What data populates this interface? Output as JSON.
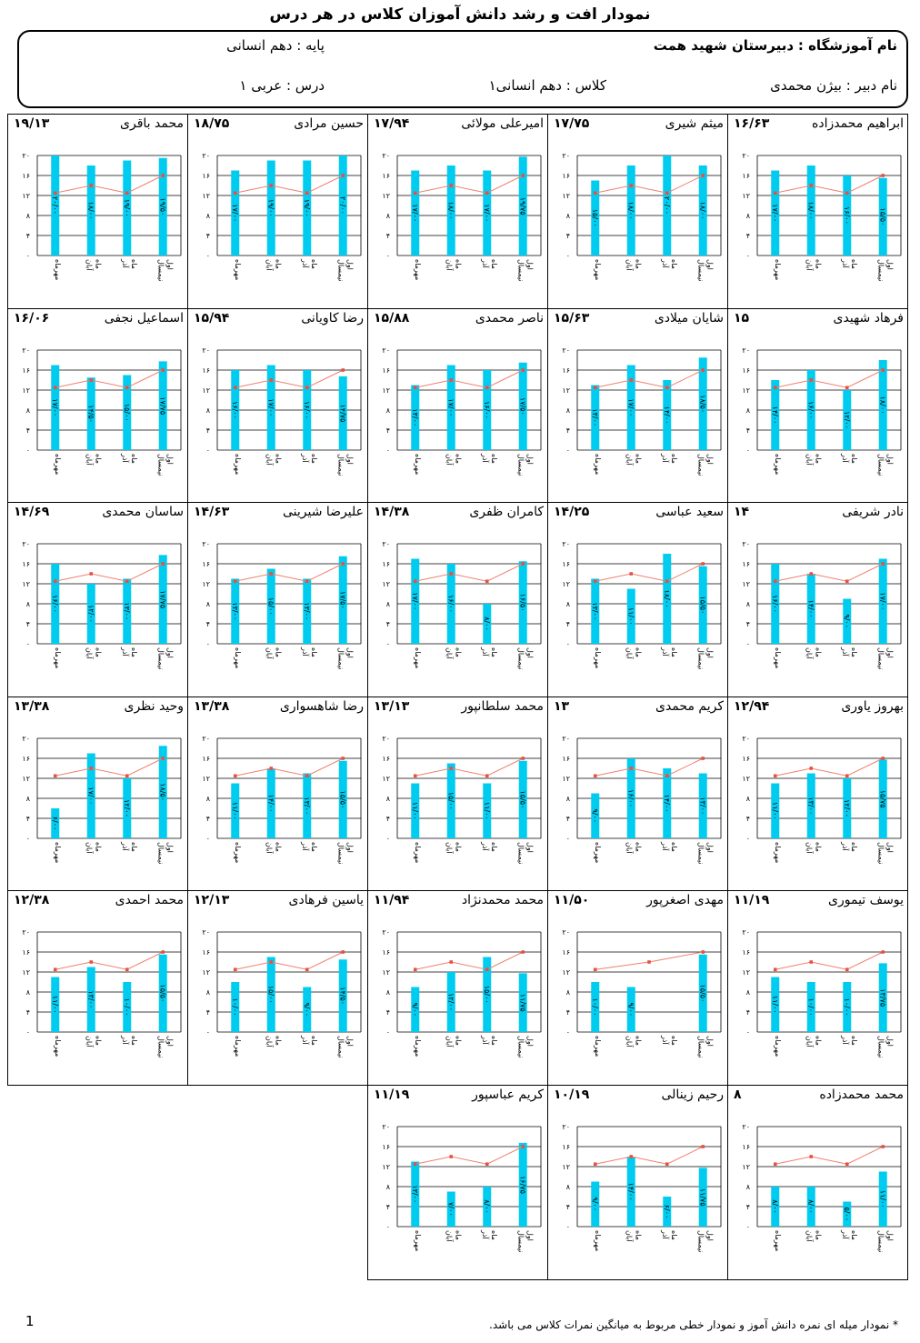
{
  "header": {
    "title": "نمودار افت و رشد دانش آموزان کلاس در هر درس",
    "school_label": "نام آموزشگاه :",
    "school_value": "دبیرستان شهید همت",
    "grade_label": "پایه :",
    "grade_value": "دهم انسانی",
    "teacher_label": "نام دبیر :",
    "teacher_value": "بیژن محمدی",
    "class_label": "کلاس :",
    "class_value": "دهم انسانی۱",
    "lesson_label": "درس :",
    "lesson_value": "عربی ۱"
  },
  "colors": {
    "bar": "#00ccf0",
    "line": "#f08070",
    "marker": "#e85040",
    "grid": "#000000"
  },
  "chart_data": {
    "type": "bar",
    "categories": [
      "مهرماه",
      "آبان ماه",
      "آذر ماه",
      "نیمسال اول"
    ],
    "y_ticks": [
      "۰",
      "۴",
      "۸",
      "۱۲",
      "۱۶",
      "۲۰"
    ],
    "ylim": [
      0,
      20
    ],
    "class_average_line": [
      12.5,
      14,
      12.5,
      16
    ],
    "students": [
      {
        "name": "ابراهیم محمدزاده",
        "avg": "۱۶/۶۳",
        "values": [
          17,
          18,
          16,
          15.5
        ],
        "labels": [
          "۱۷/۰۰",
          "۱۸/۰۰",
          "۱۶/۰۰",
          "۱۵/۵۰"
        ]
      },
      {
        "name": "میثم شیری",
        "avg": "۱۷/۷۵",
        "values": [
          15,
          18,
          20,
          18
        ],
        "labels": [
          "۱۵/۰۰",
          "۱۸/۰۰",
          "۲۰/۰۰",
          "۱۸/۰۰"
        ]
      },
      {
        "name": "امیرعلی مولائی",
        "avg": "۱۷/۹۴",
        "values": [
          17,
          18,
          17,
          19.75
        ],
        "labels": [
          "۱۷/۰۰",
          "۱۸/۰۰",
          "۱۷/۰۰",
          "۱۹/۷۵"
        ]
      },
      {
        "name": "حسین مرادی",
        "avg": "۱۸/۷۵",
        "values": [
          17,
          19,
          19,
          20
        ],
        "labels": [
          "۱۷/۰۰",
          "۱۹/۰۰",
          "۱۹/۰۰",
          "۲۰/۰۰"
        ]
      },
      {
        "name": "محمد باقری",
        "avg": "۱۹/۱۳",
        "values": [
          20,
          18,
          19,
          19.5
        ],
        "labels": [
          "۲۰/۰۰",
          "۱۸/۰۰",
          "۱۹/۰۰",
          "۱۹/۵۰"
        ]
      },
      {
        "name": "فرهاد شهیدی",
        "avg": "۱۵",
        "values": [
          14,
          16,
          12,
          18
        ],
        "labels": [
          "۱۴/۰۰",
          "۱۶/۰۰",
          "۱۲/۰۰",
          "۱۸/۰۰"
        ]
      },
      {
        "name": "شایان میلادی",
        "avg": "۱۵/۶۳",
        "values": [
          13,
          17,
          14,
          18.5
        ],
        "labels": [
          "۱۳/۰۰",
          "۱۷/۰۰",
          "۱۴/۰۰",
          "۱۸/۵۰"
        ]
      },
      {
        "name": "ناصر محمدی",
        "avg": "۱۵/۸۸",
        "values": [
          13,
          17,
          16,
          17.5
        ],
        "labels": [
          "۱۳/۰۰",
          "۱۷/۰۰",
          "۱۶/۰۰",
          "۱۷/۵۰"
        ]
      },
      {
        "name": "رضا کاویانی",
        "avg": "۱۵/۹۴",
        "values": [
          16,
          17,
          16,
          14.75
        ],
        "labels": [
          "۱۶/۰۰",
          "۱۷/۰۰",
          "۱۶/۰۰",
          "۱۴/۷۵"
        ]
      },
      {
        "name": "اسماعیل نجفی",
        "avg": "۱۶/۰۶",
        "values": [
          17,
          14.5,
          15,
          17.75
        ],
        "labels": [
          "۱۷/۰۰",
          "۱۴/۵۰",
          "۱۵/۰۰",
          "۱۷/۷۵"
        ]
      },
      {
        "name": "نادر شریفی",
        "avg": "۱۴",
        "values": [
          16,
          14,
          9,
          17
        ],
        "labels": [
          "۱۶/۰۰",
          "۱۴/۰۰",
          "۹/۰۰",
          "۱۷/۰۰"
        ]
      },
      {
        "name": "سعید عباسی",
        "avg": "۱۴/۲۵",
        "values": [
          13,
          11,
          18,
          15.5
        ],
        "labels": [
          "۱۳/۰۰",
          "۱۱/۰۰",
          "۱۸/۰۰",
          "۱۵/۵۰"
        ]
      },
      {
        "name": "کامران ظفری",
        "avg": "۱۴/۳۸",
        "values": [
          17,
          16,
          8,
          16.5
        ],
        "labels": [
          "۱۷/۰۰",
          "۱۶/۰۰",
          "۸/۰۰",
          "۱۶/۵۰"
        ]
      },
      {
        "name": "علیرضا شیرینی",
        "avg": "۱۴/۶۳",
        "values": [
          13,
          15,
          13,
          17.5
        ],
        "labels": [
          "۱۳/۰۰",
          "۱۵/۰۰",
          "۱۳/۰۰",
          "۱۷/۵۰"
        ]
      },
      {
        "name": "ساسان محمدی",
        "avg": "۱۴/۶۹",
        "values": [
          16,
          12,
          13,
          17.75
        ],
        "labels": [
          "۱۶/۰۰",
          "۱۲/۰۰",
          "۱۳/۰۰",
          "۱۷/۷۵"
        ]
      },
      {
        "name": "بهروز یاوری",
        "avg": "۱۲/۹۴",
        "values": [
          11,
          13,
          12,
          15.75
        ],
        "labels": [
          "۱۱/۰۰",
          "۱۳/۰۰",
          "۱۲/۰۰",
          "۱۵/۷۵"
        ]
      },
      {
        "name": "کریم محمدی",
        "avg": "۱۳",
        "values": [
          9,
          16,
          14,
          13
        ],
        "labels": [
          "۹/۰۰",
          "۱۶/۰۰",
          "۱۴/۰۰",
          "۱۳/۰۰"
        ]
      },
      {
        "name": "محمد سلطانپور",
        "avg": "۱۳/۱۳",
        "values": [
          11,
          15,
          11,
          15.5
        ],
        "labels": [
          "۱۱/۰۰",
          "۱۵/۰۰",
          "۱۱/۰۰",
          "۱۵/۵۰"
        ]
      },
      {
        "name": "رضا شاهسواری",
        "avg": "۱۳/۳۸",
        "values": [
          11,
          14,
          13,
          15.5
        ],
        "labels": [
          "۱۱/۰۰",
          "۱۴/۰۰",
          "۱۳/۰۰",
          "۱۵/۵۰"
        ]
      },
      {
        "name": "وحید نظری",
        "avg": "۱۳/۳۸",
        "values": [
          6,
          17,
          12,
          18.5
        ],
        "labels": [
          "۶/۰۰",
          "۱۷/۰۰",
          "۱۲/۰۰",
          "۱۸/۵۰"
        ]
      },
      {
        "name": "یوسف تیموری",
        "avg": "۱۱/۱۹",
        "values": [
          11,
          10,
          10,
          13.75
        ],
        "labels": [
          "۱۱/۰۰",
          "۱۰/۰۰",
          "۱۰/۰۰",
          "۱۳/۷۵"
        ]
      },
      {
        "name": "مهدی اصغرپور",
        "avg": "۱۱/۵۰",
        "values": [
          10,
          9,
          null,
          15.5
        ],
        "labels": [
          "۱۰/۰۰",
          "۹/۰۰",
          "",
          "۱۵/۵۰"
        ]
      },
      {
        "name": "محمد محمدنژاد",
        "avg": "۱۱/۹۴",
        "values": [
          9,
          12,
          15,
          11.75
        ],
        "labels": [
          "۹/۰۰",
          "۱۲/۰۰",
          "۱۵/۰۰",
          "۱۱/۷۵"
        ]
      },
      {
        "name": "یاسین فرهادی",
        "avg": "۱۲/۱۳",
        "values": [
          10,
          15,
          9,
          14.5
        ],
        "labels": [
          "۱۰/۰۰",
          "۱۵/۰۰",
          "۹/۰۰",
          "۱۴/۵۰"
        ]
      },
      {
        "name": "محمد احمدی",
        "avg": "۱۲/۳۸",
        "values": [
          11,
          13,
          10,
          15.5
        ],
        "labels": [
          "۱۱/۰۰",
          "۱۳/۰۰",
          "۱۰/۰۰",
          "۱۵/۵۰"
        ]
      },
      {
        "name": "محمد محمدزاده",
        "avg": "۸",
        "values": [
          8,
          8,
          5,
          11
        ],
        "labels": [
          "۸/۰۰",
          "۸/۰۰",
          "۵/۰۰",
          "۱۱/۰۰"
        ]
      },
      {
        "name": "رحیم زینالی",
        "avg": "۱۰/۱۹",
        "values": [
          9,
          14,
          6,
          11.75
        ],
        "labels": [
          "۹/۰۰",
          "۱۴/۰۰",
          "۶/۰۰",
          "۱۱/۷۵"
        ]
      },
      {
        "name": "کریم عباسپور",
        "avg": "۱۱/۱۹",
        "values": [
          13,
          7,
          8,
          16.75
        ],
        "labels": [
          "۱۳/۰۰",
          "۷/۰۰",
          "۸/۰۰",
          "۱۶/۷۵"
        ]
      }
    ]
  },
  "footer": {
    "footnote": "* نمودار میله ای نمره دانش آموز و نمودار خطی مربوط به میانگین نمرات کلاس می باشد.",
    "page_number": "1"
  }
}
